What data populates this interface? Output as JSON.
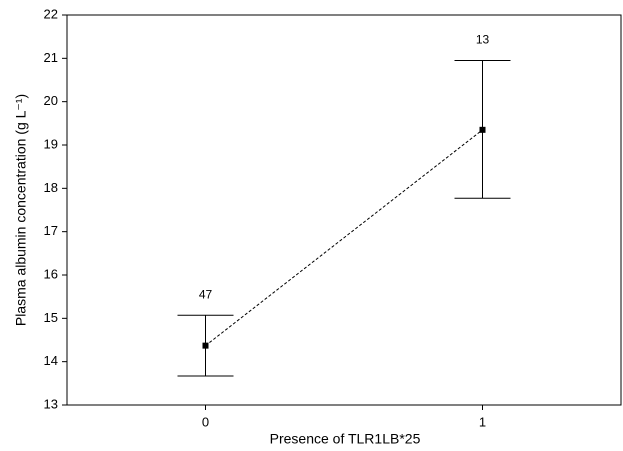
{
  "chart_data": {
    "type": "line",
    "x_label": "Presence of TLR1LB*25",
    "y_label": "Plasma albumin concentration (g L⁻¹)",
    "x": [
      0,
      1
    ],
    "series": [
      {
        "color": "#000000",
        "values": [
          14.37,
          19.35
        ],
        "err_low": [
          13.67,
          17.77
        ],
        "err_high": [
          15.07,
          20.95
        ],
        "labels": [
          "47",
          "13"
        ]
      }
    ],
    "xlim": [
      -0.5,
      1.5
    ],
    "xticks": [
      0,
      1
    ],
    "ylim": [
      13,
      22
    ],
    "yticks": [
      13,
      14,
      15,
      16,
      17,
      18,
      19,
      20,
      21,
      22
    ],
    "grid": false,
    "line_style": "dashed"
  }
}
